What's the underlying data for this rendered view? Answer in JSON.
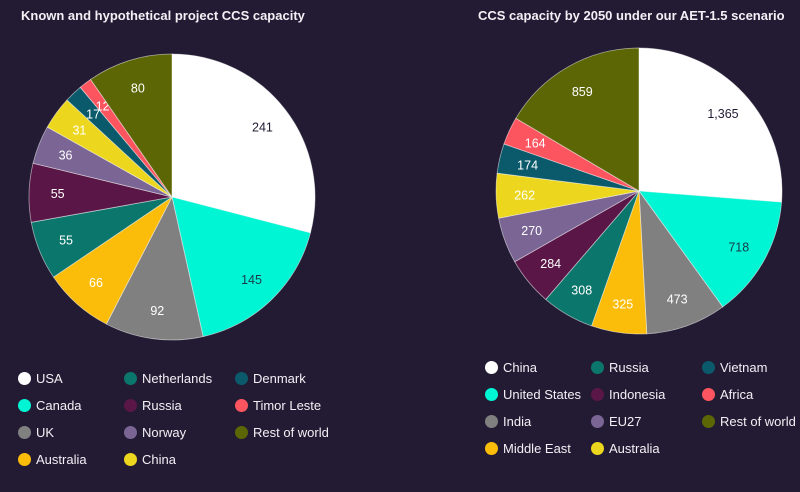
{
  "chart_data": [
    {
      "type": "pie",
      "title": "Known and hypothetical project CCS capacity",
      "start": "12 o'clock, clockwise",
      "legend_position": "bottom",
      "slices": [
        {
          "label": "USA",
          "value": 241,
          "color": "#ffffff",
          "label_color": "#231b33"
        },
        {
          "label": "Canada",
          "value": 145,
          "color": "#00f5d4",
          "label_color": "#1a3a4a"
        },
        {
          "label": "UK",
          "value": 92,
          "color": "#808080",
          "label_color": "#ffffff"
        },
        {
          "label": "Australia",
          "value": 66,
          "color": "#fbbd0a",
          "label_color": "#ffffff"
        },
        {
          "label": "Netherlands",
          "value": 55,
          "color": "#0b766b",
          "label_color": "#ffffff"
        },
        {
          "label": "Russia",
          "value": 55,
          "color": "#5a1646",
          "label_color": "#ffffff"
        },
        {
          "label": "Norway",
          "value": 36,
          "color": "#7a6594",
          "label_color": "#ffffff"
        },
        {
          "label": "China",
          "value": 31,
          "color": "#ecd71e",
          "label_color": "#ffffff"
        },
        {
          "label": "Denmark",
          "value": 17,
          "color": "#0b5a6b",
          "label_color": "#ffffff"
        },
        {
          "label": "Timor Leste",
          "value": 12,
          "color": "#fc5560",
          "label_color": "#ffffff"
        },
        {
          "label": "Rest of world",
          "value": 80,
          "color": "#5c6605",
          "label_color": "#ffffff"
        }
      ],
      "legend": [
        "USA",
        "Netherlands",
        "Denmark",
        "Canada",
        "Russia",
        "Timor Leste",
        "UK",
        "Norway",
        "Rest of world",
        "Australia",
        "China"
      ]
    },
    {
      "type": "pie",
      "title": "CCS capacity by 2050 under our AET-1.5 scenario",
      "start": "12 o'clock, clockwise",
      "legend_position": "bottom",
      "slices": [
        {
          "label": "China",
          "value": 1365,
          "display": "1,365",
          "color": "#ffffff",
          "label_color": "#231b33"
        },
        {
          "label": "United States",
          "value": 718,
          "display": "718",
          "color": "#00f5d4",
          "label_color": "#1a3a4a"
        },
        {
          "label": "India",
          "value": 473,
          "display": "473",
          "color": "#808080",
          "label_color": "#ffffff"
        },
        {
          "label": "Middle East",
          "value": 325,
          "display": "325",
          "color": "#fbbd0a",
          "label_color": "#ffffff"
        },
        {
          "label": "Russia",
          "value": 308,
          "display": "308",
          "color": "#0b766b",
          "label_color": "#ffffff"
        },
        {
          "label": "Indonesia",
          "value": 284,
          "display": "284",
          "color": "#5a1646",
          "label_color": "#ffffff"
        },
        {
          "label": "EU27",
          "value": 270,
          "display": "270",
          "color": "#7a6594",
          "label_color": "#ffffff"
        },
        {
          "label": "Australia",
          "value": 262,
          "display": "262",
          "color": "#ecd71e",
          "label_color": "#ffffff"
        },
        {
          "label": "Vietnam",
          "value": 174,
          "display": "174",
          "color": "#0b5a6b",
          "label_color": "#ffffff"
        },
        {
          "label": "Africa",
          "value": 164,
          "display": "164",
          "color": "#fc5560",
          "label_color": "#ffffff"
        },
        {
          "label": "Rest of world",
          "value": 859,
          "display": "859",
          "color": "#5c6605",
          "label_color": "#ffffff"
        }
      ],
      "legend": [
        "China",
        "Russia",
        "Vietnam",
        "United States",
        "Indonesia",
        "Africa",
        "India",
        "EU27",
        "Rest of world",
        "Middle East",
        "Australia"
      ]
    }
  ]
}
